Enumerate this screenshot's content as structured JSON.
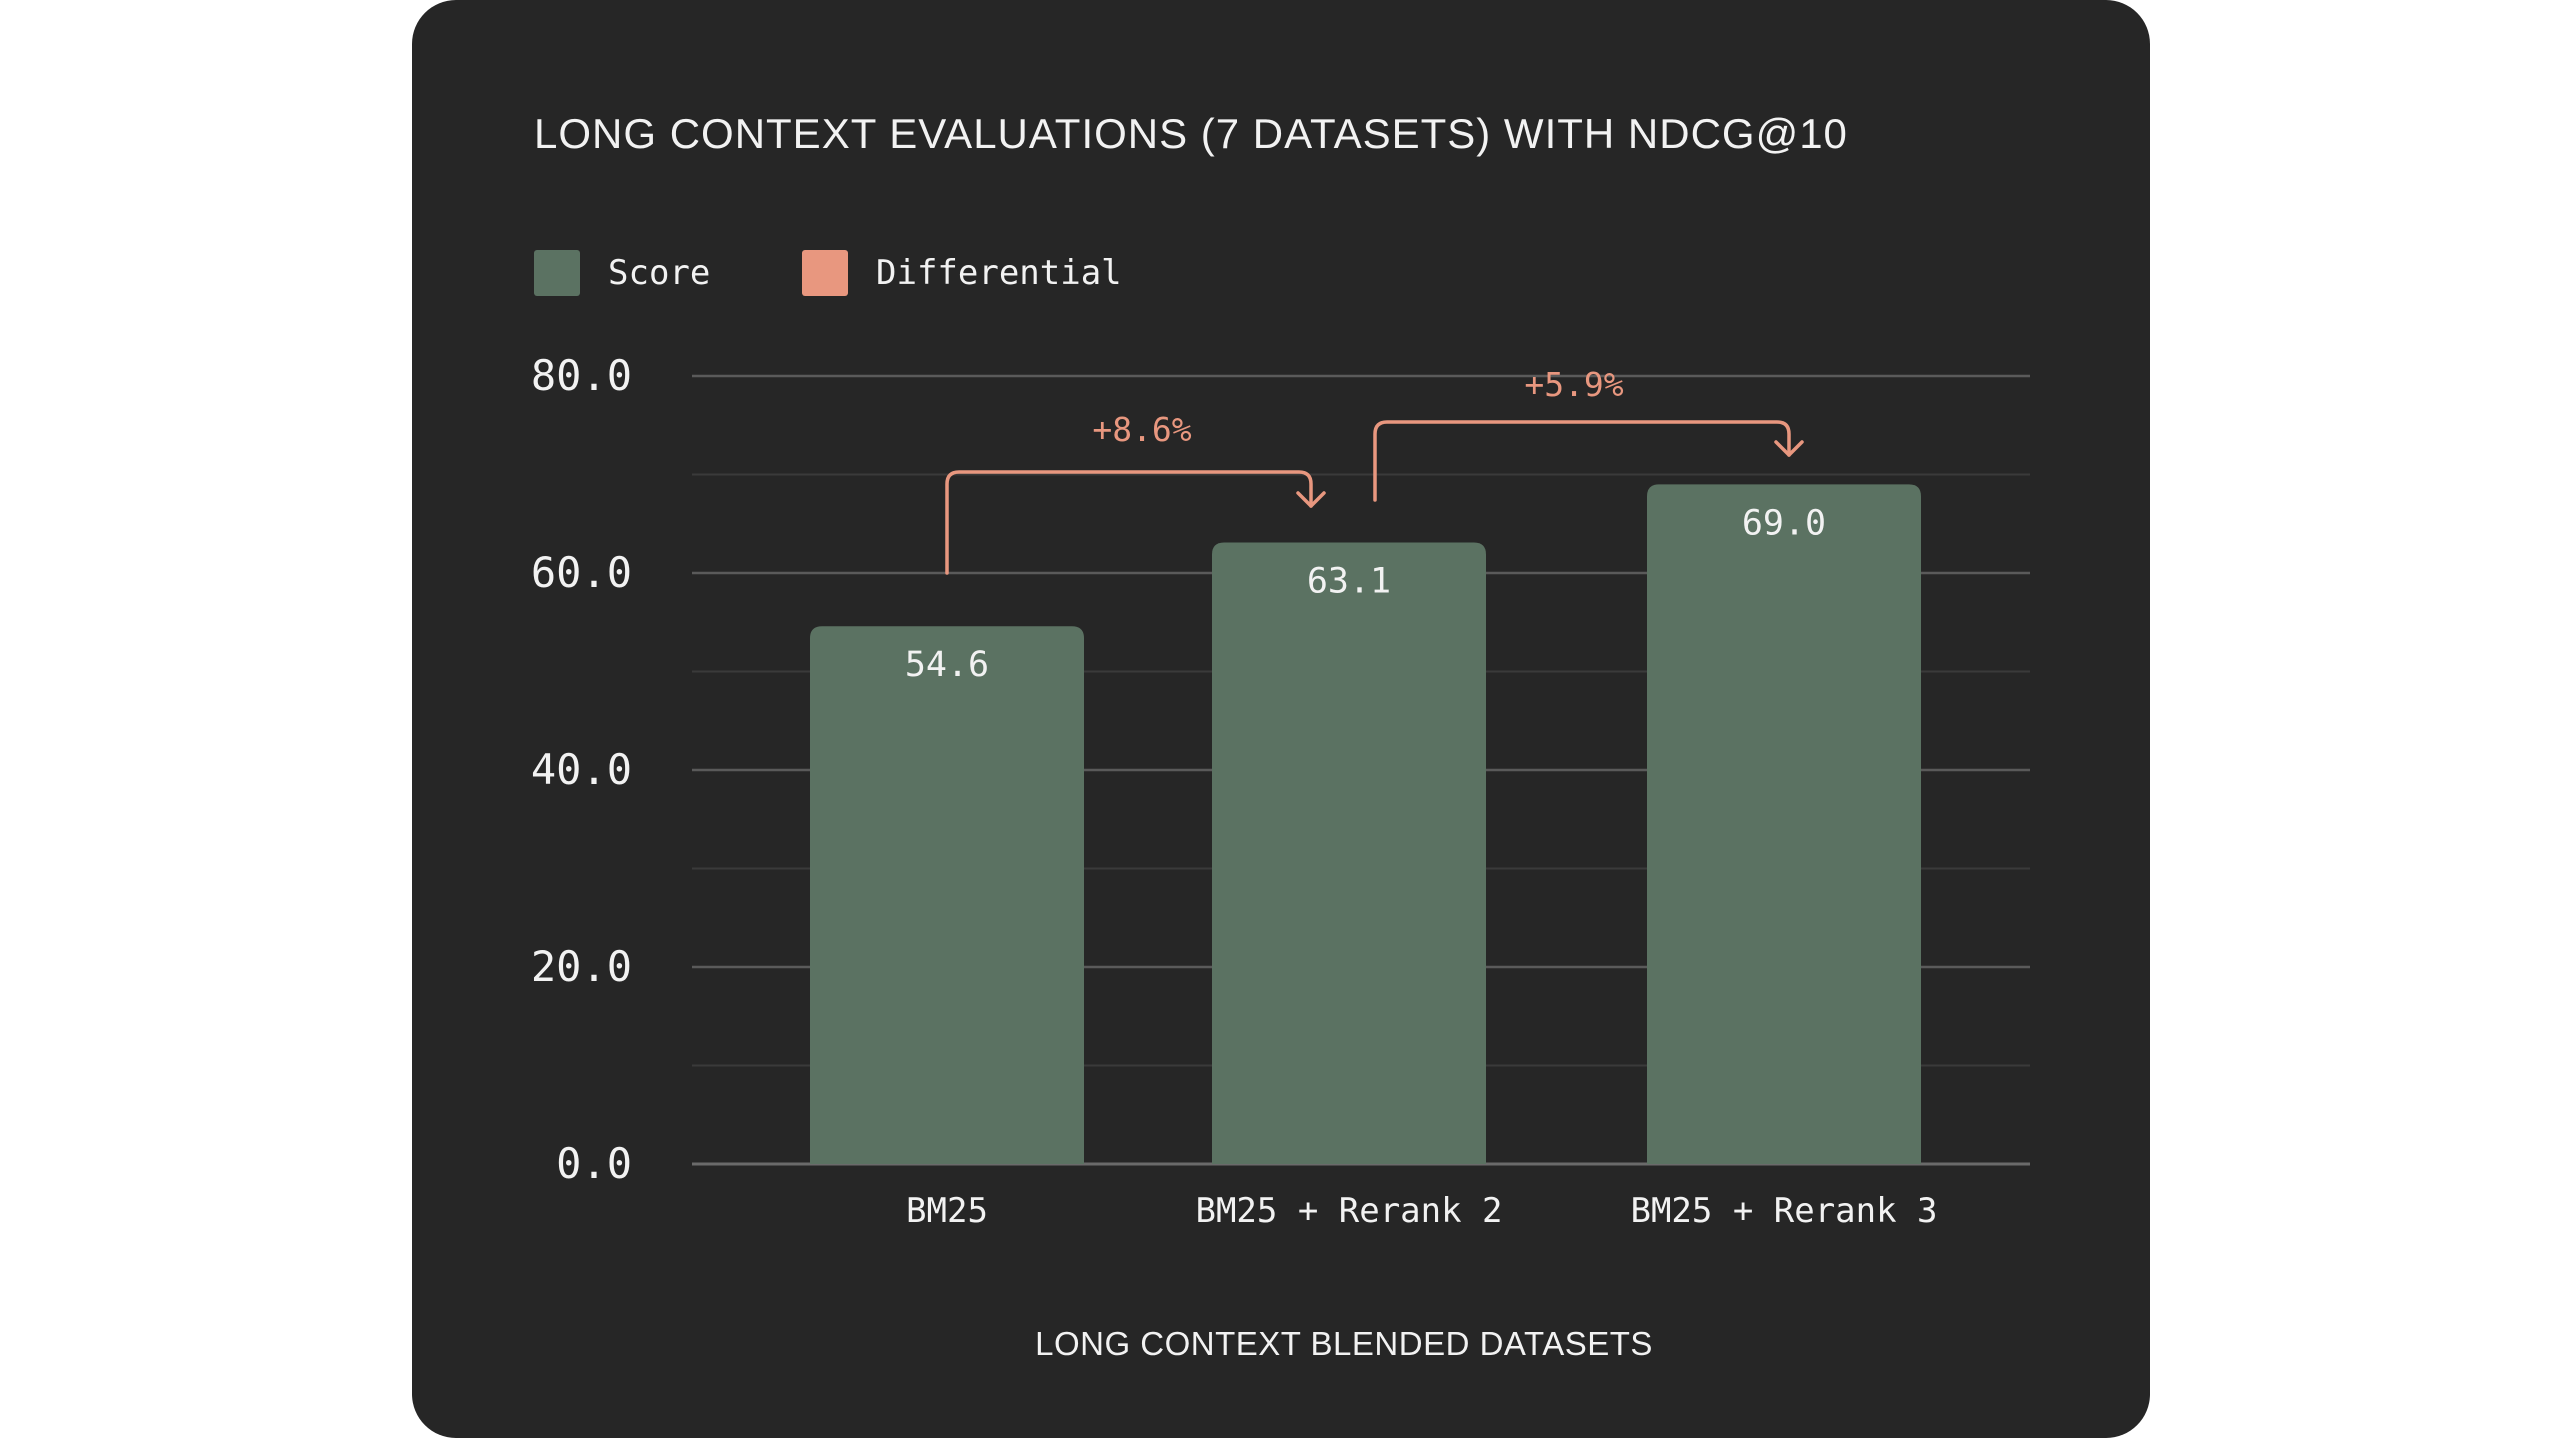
{
  "chart_data": {
    "type": "bar",
    "title": "LONG CONTEXT EVALUATIONS (7 DATASETS) WITH NDCG@10",
    "xlabel": "LONG CONTEXT BLENDED DATASETS",
    "ylabel": "",
    "categories": [
      "BM25",
      "BM25 + Rerank 2",
      "BM25 + Rerank 3"
    ],
    "series": [
      {
        "name": "Score",
        "values": [
          54.6,
          63.1,
          69.0
        ],
        "labels": [
          "54.6",
          "63.1",
          "69.0"
        ]
      }
    ],
    "legend": [
      {
        "name": "Score",
        "color": "#5b7262"
      },
      {
        "name": "Differential",
        "color": "#e8977f"
      }
    ],
    "differentials": [
      {
        "from": "BM25",
        "to": "BM25 + Rerank 2",
        "label": "+8.6%"
      },
      {
        "from": "BM25 + Rerank 2",
        "to": "BM25 + Rerank 3",
        "label": "+5.9%"
      }
    ],
    "ylim": [
      0,
      80
    ],
    "yticks": [
      0,
      20,
      40,
      60,
      80
    ],
    "ytick_labels": [
      "0.0",
      "20.0",
      "40.0",
      "60.0",
      "80.0"
    ],
    "grid": true,
    "legend_position": "top-left",
    "colors": {
      "background": "#262626",
      "bar": "#5b7262",
      "differential": "#e8977f",
      "grid_major": "#5a5a5a",
      "grid_minor": "#3a3a3a",
      "text": "#f2f2f2"
    }
  }
}
